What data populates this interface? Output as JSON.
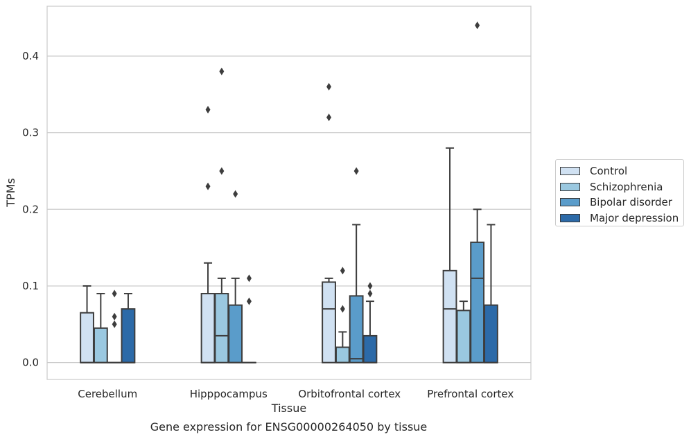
{
  "chart_data": {
    "type": "box",
    "xlabel": "Tissue",
    "ylabel": "TPMs",
    "ylim": [
      -0.022,
      0.465
    ],
    "yticks": [
      0.0,
      0.1,
      0.2,
      0.3,
      0.4
    ],
    "ytick_labels": [
      "0.0",
      "0.1",
      "0.2",
      "0.3",
      "0.4"
    ],
    "grid": "horizontal",
    "legend_position": "right",
    "categories": [
      "Cerebellum",
      "Hipppocampus",
      "Orbitofrontal cortex",
      "Prefrontal cortex"
    ],
    "series": [
      {
        "name": "Control",
        "color": "#d0e1f2",
        "boxes": [
          {
            "q1": 0.0,
            "median": 0.0,
            "q3": 0.065,
            "whisker_low": 0.0,
            "whisker_high": 0.1,
            "outliers": []
          },
          {
            "q1": 0.0,
            "median": 0.0,
            "q3": 0.09,
            "whisker_low": 0.0,
            "whisker_high": 0.13,
            "outliers": [
              0.23,
              0.33
            ]
          },
          {
            "q1": 0.0,
            "median": 0.07,
            "q3": 0.105,
            "whisker_low": 0.0,
            "whisker_high": 0.11,
            "outliers": [
              0.32,
              0.36
            ]
          },
          {
            "q1": 0.0,
            "median": 0.07,
            "q3": 0.12,
            "whisker_low": 0.0,
            "whisker_high": 0.28,
            "outliers": []
          }
        ]
      },
      {
        "name": "Schizophrenia",
        "color": "#9ac8e0",
        "boxes": [
          {
            "q1": 0.0,
            "median": 0.0,
            "q3": 0.045,
            "whisker_low": 0.0,
            "whisker_high": 0.09,
            "outliers": []
          },
          {
            "q1": 0.0,
            "median": 0.035,
            "q3": 0.09,
            "whisker_low": 0.0,
            "whisker_high": 0.11,
            "outliers": [
              0.25,
              0.38
            ]
          },
          {
            "q1": 0.0,
            "median": 0.0,
            "q3": 0.02,
            "whisker_low": 0.0,
            "whisker_high": 0.04,
            "outliers": [
              0.07,
              0.12
            ]
          },
          {
            "q1": 0.0,
            "median": 0.0,
            "q3": 0.068,
            "whisker_low": 0.0,
            "whisker_high": 0.08,
            "outliers": []
          }
        ]
      },
      {
        "name": "Bipolar disorder",
        "color": "#5a9cca",
        "boxes": [
          {
            "q1": 0.0,
            "median": 0.0,
            "q3": 0.0,
            "whisker_low": 0.0,
            "whisker_high": 0.0,
            "outliers": [
              0.05,
              0.06,
              0.09
            ]
          },
          {
            "q1": 0.0,
            "median": 0.0,
            "q3": 0.075,
            "whisker_low": 0.0,
            "whisker_high": 0.11,
            "outliers": [
              0.22
            ]
          },
          {
            "q1": 0.0,
            "median": 0.005,
            "q3": 0.087,
            "whisker_low": 0.0,
            "whisker_high": 0.18,
            "outliers": [
              0.25
            ]
          },
          {
            "q1": 0.0,
            "median": 0.11,
            "q3": 0.157,
            "whisker_low": 0.0,
            "whisker_high": 0.2,
            "outliers": [
              0.44
            ]
          }
        ]
      },
      {
        "name": "Major depression",
        "color": "#2c6aa8",
        "boxes": [
          {
            "q1": 0.0,
            "median": 0.0,
            "q3": 0.07,
            "whisker_low": 0.0,
            "whisker_high": 0.09,
            "outliers": []
          },
          {
            "q1": 0.0,
            "median": 0.0,
            "q3": 0.0,
            "whisker_low": 0.0,
            "whisker_high": 0.0,
            "outliers": [
              0.08,
              0.11
            ]
          },
          {
            "q1": 0.0,
            "median": 0.0,
            "q3": 0.035,
            "whisker_low": 0.0,
            "whisker_high": 0.08,
            "outliers": [
              0.09,
              0.1
            ]
          },
          {
            "q1": 0.0,
            "median": 0.0,
            "q3": 0.075,
            "whisker_low": 0.0,
            "whisker_high": 0.18,
            "outliers": []
          }
        ]
      }
    ]
  },
  "caption": "Gene expression for ENSG00000264050 by tissue"
}
